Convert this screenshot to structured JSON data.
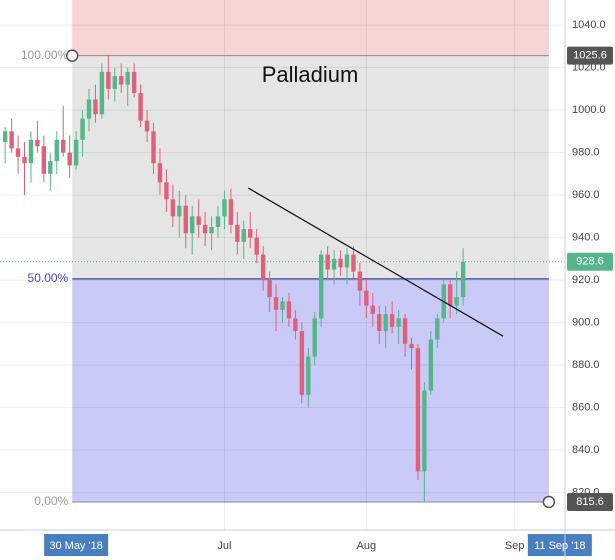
{
  "chart_data": {
    "type": "candlestick",
    "title": "Palladium",
    "x": [
      0,
      1,
      2,
      3,
      4,
      5,
      6,
      7,
      8,
      9,
      10,
      11,
      12,
      13,
      14,
      15,
      16,
      17,
      18,
      19,
      20,
      21,
      22,
      23,
      24,
      25,
      26,
      27,
      28,
      29,
      30,
      31,
      32,
      33,
      34,
      35,
      36,
      37,
      38,
      39,
      40,
      41,
      42,
      43,
      44,
      45,
      46,
      47,
      48,
      49,
      50,
      51,
      52,
      53,
      54,
      55,
      56,
      57,
      58,
      59,
      60,
      61,
      62,
      63,
      64,
      65,
      66,
      67,
      68,
      69,
      70,
      71
    ],
    "open": [
      985,
      990,
      982,
      978,
      975,
      986,
      983,
      970,
      976,
      986,
      980,
      974,
      986,
      996,
      1005,
      998,
      1018,
      1010,
      1016,
      1012,
      1018,
      1008,
      995,
      990,
      975,
      966,
      958,
      950,
      955,
      942,
      950,
      946,
      942,
      945,
      950,
      958,
      946,
      938,
      944,
      940,
      932,
      920,
      912,
      906,
      910,
      902,
      896,
      866,
      884,
      902,
      932,
      925,
      930,
      926,
      932,
      924,
      915,
      908,
      904,
      896,
      904,
      898,
      902,
      890,
      888,
      830,
      868,
      892,
      902,
      918,
      908,
      912
    ],
    "high": [
      992,
      996,
      988,
      985,
      990,
      995,
      988,
      980,
      990,
      1002,
      988,
      990,
      1000,
      1010,
      1012,
      1022,
      1026,
      1020,
      1022,
      1020,
      1022,
      1012,
      1000,
      994,
      982,
      972,
      965,
      962,
      960,
      955,
      958,
      952,
      950,
      955,
      962,
      963,
      952,
      948,
      952,
      944,
      936,
      924,
      918,
      912,
      914,
      906,
      900,
      888,
      905,
      934,
      936,
      934,
      934,
      935,
      936,
      928,
      920,
      914,
      908,
      908,
      910,
      906,
      904,
      893,
      890,
      872,
      896,
      904,
      920,
      920,
      924,
      935
    ],
    "low": [
      975,
      980,
      970,
      960,
      966,
      980,
      966,
      962,
      970,
      978,
      968,
      972,
      978,
      990,
      994,
      996,
      1005,
      1004,
      1008,
      1002,
      1006,
      992,
      985,
      970,
      960,
      952,
      945,
      940,
      935,
      932,
      940,
      936,
      934,
      940,
      944,
      942,
      932,
      930,
      935,
      928,
      915,
      905,
      896,
      900,
      898,
      892,
      862,
      860,
      880,
      898,
      920,
      918,
      922,
      918,
      920,
      908,
      902,
      898,
      890,
      888,
      895,
      890,
      884,
      878,
      826,
      816,
      866,
      888,
      900,
      902,
      904,
      908
    ],
    "close": [
      990,
      982,
      978,
      975,
      986,
      983,
      970,
      976,
      986,
      980,
      974,
      986,
      996,
      1005,
      998,
      1018,
      1010,
      1016,
      1012,
      1018,
      1008,
      995,
      990,
      975,
      966,
      958,
      950,
      955,
      942,
      950,
      946,
      942,
      945,
      950,
      958,
      946,
      938,
      944,
      940,
      932,
      920,
      912,
      906,
      910,
      902,
      896,
      866,
      884,
      902,
      932,
      925,
      930,
      926,
      932,
      924,
      915,
      908,
      904,
      896,
      904,
      898,
      902,
      890,
      888,
      830,
      868,
      892,
      902,
      918,
      908,
      912,
      928.6
    ],
    "up_color": "#56b58b",
    "down_color": "#e0607a",
    "xlim": [
      -0.8,
      86.8
    ],
    "ylim": [
      802.4,
      1051.8
    ],
    "xticks": [
      {
        "value": 11,
        "label": "30 May '18"
      },
      {
        "value": 34,
        "label": "Jul"
      },
      {
        "value": 56,
        "label": "Aug"
      },
      {
        "value": 79,
        "label": "Sep"
      },
      {
        "value": 86,
        "label": "11 Sep '18"
      }
    ],
    "yticks": [
      {
        "value": 820,
        "label": "820.0"
      },
      {
        "value": 840,
        "label": "840.0"
      },
      {
        "value": 860,
        "label": "860.0"
      },
      {
        "value": 880,
        "label": "880.0"
      },
      {
        "value": 900,
        "label": "900.0"
      },
      {
        "value": 920,
        "label": "920.0"
      },
      {
        "value": 940,
        "label": "940.0"
      },
      {
        "value": 960,
        "label": "960.0"
      },
      {
        "value": 980,
        "label": "980.0"
      },
      {
        "value": 1000,
        "label": "1000.0"
      },
      {
        "value": 1020,
        "label": "1020.0"
      },
      {
        "value": 1040,
        "label": "1040.0"
      }
    ],
    "grid": true,
    "fib_x": [
      10.4,
      84.3
    ],
    "fib_levels": [
      {
        "label": "100.00%",
        "value": 1025.6
      },
      {
        "label": "50.00%",
        "value": 920.6
      },
      {
        "label": "0.00%",
        "value": 815.6
      }
    ],
    "trendline": {
      "x": [
        37.7,
        77.2
      ],
      "y": [
        963.3,
        893.6
      ]
    }
  }
}
